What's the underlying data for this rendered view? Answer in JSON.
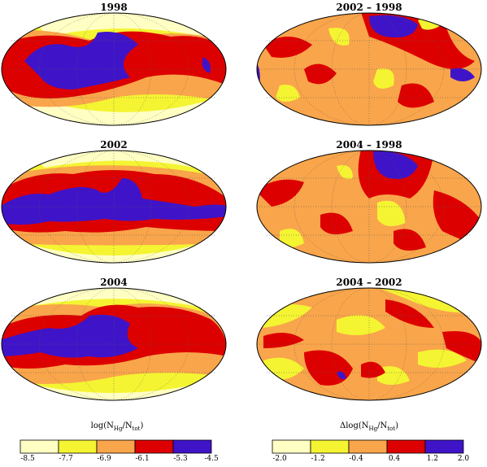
{
  "colors": {
    "c1": "#ffffc4",
    "c2": "#f4f432",
    "c3": "#f9a54b",
    "c4": "#dd0000",
    "c5": "#3f14c8",
    "outline": "#000000",
    "grid": "#555555"
  },
  "panels": [
    {
      "title": "1998"
    },
    {
      "title": "2002 – 1998"
    },
    {
      "title": "2002"
    },
    {
      "title": "2004 – 1998"
    },
    {
      "title": "2004"
    },
    {
      "title": "2004 – 2002"
    }
  ],
  "colorbars": [
    {
      "label": "log(N",
      "label_sub1": "Hg",
      "label_mid": "/N",
      "label_sub2": "tot",
      "label_end": ")",
      "ticks": [
        "-8.5",
        "-7.7",
        "-6.9",
        "-6.1",
        "-5.3",
        "-4.5"
      ]
    },
    {
      "label": "Δlog(N",
      "label_sub1": "Hg",
      "label_mid": "/N",
      "label_sub2": "tot",
      "label_end": ")",
      "ticks": [
        "-2.0",
        "-1.2",
        "-0.4",
        "0.4",
        "1.2",
        "2.0"
      ]
    }
  ]
}
